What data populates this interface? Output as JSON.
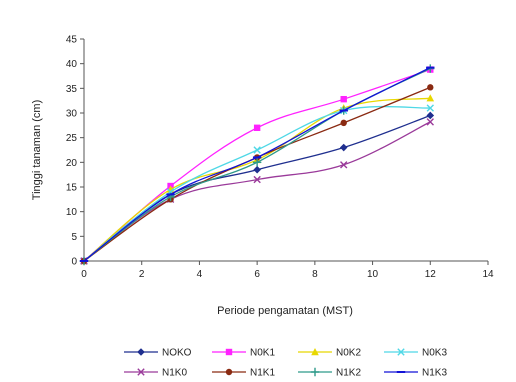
{
  "chart_data": {
    "type": "line",
    "xlabel": "Periode pengamatan (MST)",
    "ylabel": "Tinggi tanaman (cm)",
    "xlim": [
      0,
      14
    ],
    "ylim": [
      0,
      45
    ],
    "xticks": [
      0,
      2,
      4,
      6,
      8,
      10,
      12,
      14
    ],
    "yticks": [
      0,
      5,
      10,
      15,
      20,
      25,
      30,
      35,
      40,
      45
    ],
    "grid": false,
    "legend_position": "bottom",
    "x": [
      0,
      3,
      6,
      9,
      12
    ],
    "series": [
      {
        "name": "NOKO",
        "color": "#1f2f8f",
        "marker": "diamond",
        "values": [
          0,
          13.5,
          18.5,
          23,
          29.5
        ]
      },
      {
        "name": "N0K1",
        "color": "#ff22ff",
        "marker": "square",
        "values": [
          0,
          15.2,
          27,
          32.8,
          38.8
        ]
      },
      {
        "name": "N0K2",
        "color": "#e8d800",
        "marker": "triangle",
        "values": [
          0,
          14.5,
          20.5,
          31,
          33
        ]
      },
      {
        "name": "N0K3",
        "color": "#4fd8e6",
        "marker": "x",
        "values": [
          0,
          14,
          22.5,
          30.5,
          31
        ]
      },
      {
        "name": "N1K0",
        "color": "#9a3a9a",
        "marker": "x",
        "values": [
          0,
          12.5,
          16.5,
          19.5,
          28.2
        ]
      },
      {
        "name": "N1K1",
        "color": "#8a2a12",
        "marker": "circle",
        "values": [
          0,
          12.5,
          21,
          28,
          35.2
        ]
      },
      {
        "name": "N1K2",
        "color": "#2f9a8a",
        "marker": "plus",
        "values": [
          0,
          13,
          20,
          30.5,
          39
        ]
      },
      {
        "name": "N1K3",
        "color": "#1212d6",
        "marker": "dash",
        "values": [
          0,
          13.5,
          21,
          30.5,
          39.2
        ]
      }
    ]
  }
}
